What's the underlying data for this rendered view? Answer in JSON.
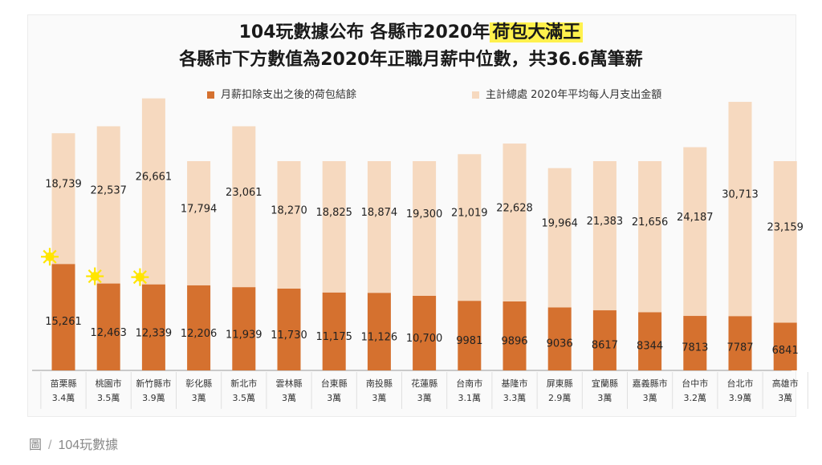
{
  "title_prefix": "104玩數據公布 各縣市2020年",
  "title_highlight": "荷包大滿王",
  "subtitle": "各縣市下方數值為2020年正職月薪中位數，共36.6萬筆薪",
  "caption": {
    "prefix": "圖",
    "source": "104玩數據"
  },
  "colors": {
    "remaining": "#d5712f",
    "spending": "#f6d9bf",
    "star": "#ffe500"
  },
  "chart_data": {
    "type": "bar",
    "stacked": true,
    "categories": [
      "苗栗縣",
      "桃園市",
      "新竹縣市",
      "彰化縣",
      "新北市",
      "雲林縣",
      "台東縣",
      "南投縣",
      "花蓮縣",
      "台南市",
      "基隆市",
      "屏東縣",
      "宜蘭縣",
      "嘉義縣市",
      "台中市",
      "台北市",
      "高雄市"
    ],
    "salary_medians": [
      "3.4萬",
      "3.5萬",
      "3.9萬",
      "3萬",
      "3.5萬",
      "3萬",
      "3萬",
      "3萬",
      "3萬",
      "3.1萬",
      "3.3萬",
      "2.9萬",
      "3萬",
      "3萬",
      "3.2萬",
      "3.9萬",
      "3萬"
    ],
    "series": [
      {
        "name": "月薪扣除支出之後的荷包結餘",
        "values": [
          15261,
          12463,
          12339,
          12206,
          11939,
          11730,
          11175,
          11126,
          10700,
          9981,
          9896,
          9036,
          8617,
          8344,
          7813,
          7787,
          6841
        ]
      },
      {
        "name": "主計總處 2020年平均每人月支出金額",
        "values": [
          18739,
          22537,
          26661,
          17794,
          23061,
          18270,
          18825,
          18874,
          19300,
          21019,
          22628,
          19964,
          21383,
          21656,
          24187,
          30713,
          23159
        ]
      }
    ],
    "starred": [
      "苗栗縣",
      "桃園市",
      "新竹縣市"
    ],
    "legend_position": "top",
    "grid": false
  }
}
